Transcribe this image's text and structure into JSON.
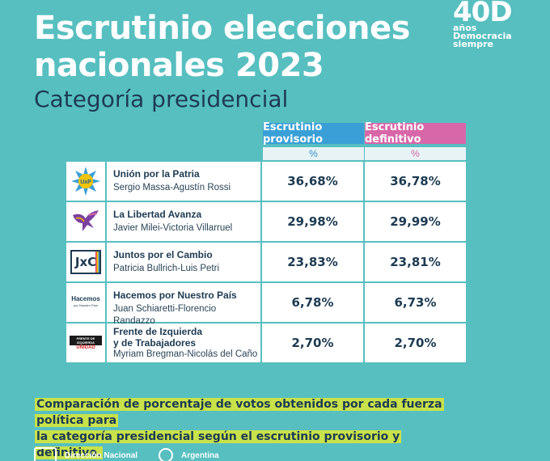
{
  "header": {
    "title_line1": "Escrutinio elecciones",
    "title_line2": "nacionales 2023",
    "subtitle": "Categoría presidencial"
  },
  "badge": {
    "number": "40D",
    "line1": "años",
    "line2": "Democracia",
    "line3": "siempre"
  },
  "table": {
    "col_prov": "Escrutinio provisorio",
    "col_def": "Escrutinio definitivo",
    "unit_prov": "%",
    "unit_def": "%",
    "rows": [
      {
        "party": "Unión por la Patria",
        "party_line2": "",
        "candidates": "Sergio Massa-Agustín Rossi",
        "prov": "36,68%",
        "def": "36,78%",
        "logo_text": "UxP",
        "logo_icon": "sun-star-icon"
      },
      {
        "party": "La Libertad Avanza",
        "party_line2": "",
        "candidates": "Javier Milei-Victoria Villarruel",
        "prov": "29,98%",
        "def": "29,99%",
        "logo_text": "",
        "logo_icon": "eagle-icon"
      },
      {
        "party": "Juntos por el Cambio",
        "party_line2": "",
        "candidates": "Patricia Bullrich-Luis Petri",
        "prov": "23,83%",
        "def": "23,81%",
        "logo_text": "JxC",
        "logo_icon": "jxc-logo"
      },
      {
        "party": "Hacemos por Nuestro País",
        "party_line2": "",
        "candidates": "Juan Schiaretti-Florencio Randazzo",
        "prov": "6,78%",
        "def": "6,73%",
        "logo_text": "Hacemos",
        "logo_sub": "por Nuestro País",
        "logo_icon": "hacemos-logo"
      },
      {
        "party": "Frente de Izquierda",
        "party_line2": "y de Trabajadores",
        "candidates": "Myriam Bregman-Nicolás del Caño",
        "prov": "2,70%",
        "def": "2,70%",
        "logo_text": "FRENTE DE IZQUIERDA",
        "logo_sub": "UNIDAD",
        "logo_icon": "fit-logo"
      }
    ]
  },
  "note": {
    "line1": "Comparación de porcentaje de votos obtenidos por cada fuerza política para",
    "line2": "la categoría presidencial según el escrutinio provisorio y definitivo."
  },
  "footer": {
    "org1": "Dirección Nacional",
    "org2": "Argentina"
  },
  "colors": {
    "background": "#57bfc0",
    "provisorio": "#3a9fd6",
    "definitivo": "#d767a8",
    "highlight": "#c9e24a",
    "text_dark": "#1d3b52"
  }
}
